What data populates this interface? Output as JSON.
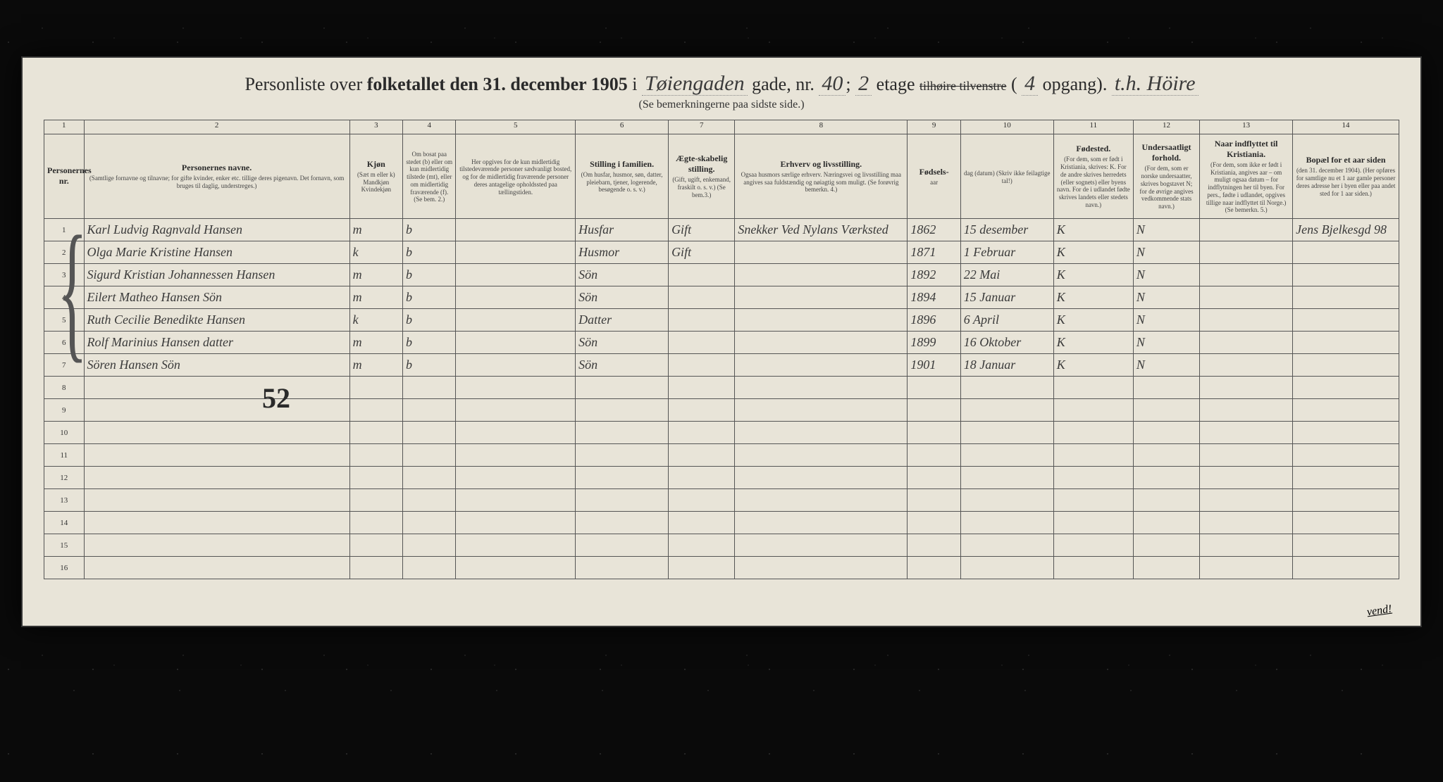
{
  "document": {
    "title_prefix": "Personliste over ",
    "title_bold": "folketallet den 31. december 1905",
    "title_i": " i ",
    "street_handwritten": "Tøiengaden",
    "title_gade": " gade, nr. ",
    "house_number": "40",
    "separator": "; ",
    "floor": "2",
    "title_etage": " etage ",
    "strike_word": "tilhøire\ntilvenstre",
    "opgang_num": "4",
    "title_opgang": " opgang). ",
    "side": "t.h. Höire",
    "subtitle": "(Se bemerkningerne paa sidste side.)",
    "big_number": "52",
    "vend": "vend!"
  },
  "columns": {
    "nums": [
      "1",
      "2",
      "3",
      "4",
      "5",
      "6",
      "7",
      "8",
      "9",
      "10",
      "11",
      "12",
      "13",
      "14"
    ],
    "headers": [
      {
        "title": "Personernes nr.",
        "sub": ""
      },
      {
        "title": "Personernes navne.",
        "sub": "(Samtlige fornavne og tilnavne; for gifte kvinder, enker etc. tillige deres pigenavn. Det fornavn, som bruges til daglig, understreges.)"
      },
      {
        "title": "Kjøn",
        "sub": "(Sæt m eller k)\nMandkjøn\nKvindekjøn"
      },
      {
        "title": "",
        "sub": "Om bosat paa stedet (b) eller om kun midlertidig tilstede (mt), eller om midlertidig fraværende (f). (Se bem. 2.)"
      },
      {
        "title": "",
        "sub": "Her opgives for de kun midlertidig tilstedeværende personer sædvanligt bosted, og for de midlertidig fraværende personer deres antagelige opholdssted paa tællingstiden."
      },
      {
        "title": "Stilling i familien.",
        "sub": "(Om husfar, husmor, søn, datter, pleiebarn, tjener, logerende, besøgende o. s. v.)"
      },
      {
        "title": "Ægte-skabelig stilling.",
        "sub": "(Gift, ugift, enkemand, fraskilt o. s. v.) (Se bem.3.)"
      },
      {
        "title": "Erhverv og livsstilling.",
        "sub": "Ogsaa husmors særlige erhverv. Næringsvei og livsstilling maa angives saa fuldstændig og nøiagtig som muligt. (Se forøvrig bemerkn. 4.)"
      },
      {
        "title": "Fødsels-",
        "sub": "aar"
      },
      {
        "title": "",
        "sub": "dag (datum)\n(Skriv ikke feilagtige tal!)"
      },
      {
        "title": "Fødested.",
        "sub": "(For dem, som er født i Kristiania, skrives: K. For de andre skrives herredets (eller sognets) eller byens navn. For de i udlandet fødte skrives landets eller stedets navn.)"
      },
      {
        "title": "Undersaatligt forhold.",
        "sub": "(For dem, som er norske undersaatter, skrives bogstavet N; for de øvrige angives vedkommende stats navn.)"
      },
      {
        "title": "Naar indflyttet til Kristiania.",
        "sub": "(For dem, som ikke er født i Kristiania, angives aar – om muligt ogsaa datum – for indflytningen her til byen. For pers., fødte i udlandet, opgives tillige naar indflyttet til Norge.) (Se bemerkn. 5.)"
      },
      {
        "title": "Bopæl for et aar siden",
        "sub": "(den 31. december 1904). (Her opføres for samtlige nu et 1 aar gamle personer deres adresse her i byen eller paa andet sted for 1 aar siden.)"
      }
    ],
    "widths_pct": [
      3,
      20,
      4,
      4,
      9,
      7,
      5,
      13,
      4,
      7,
      6,
      5,
      7,
      8
    ]
  },
  "rows": [
    {
      "n": "1",
      "name": "Karl Ludvig Ragnvald Hansen",
      "sex": "m",
      "res": "b",
      "away": "",
      "fam": "Husfar",
      "mar": "Gift",
      "occ": "Snekker\nVed Nylans Værksted",
      "year": "1862",
      "date": "15 desember",
      "birthpl": "K",
      "nat": "N",
      "moved": "",
      "prev": "Jens Bjelkesgd 98"
    },
    {
      "n": "2",
      "name": "Olga Marie Kristine Hansen",
      "sex": "k",
      "res": "b",
      "away": "",
      "fam": "Husmor",
      "mar": "Gift",
      "occ": "",
      "year": "1871",
      "date": "1 Februar",
      "birthpl": "K",
      "nat": "N",
      "moved": "",
      "prev": ""
    },
    {
      "n": "3",
      "name": "Sigurd Kristian Johannessen Hansen",
      "sex": "m",
      "res": "b",
      "away": "",
      "fam": "Sön",
      "mar": "",
      "occ": "",
      "year": "1892",
      "date": "22 Mai",
      "birthpl": "K",
      "nat": "N",
      "moved": "",
      "prev": ""
    },
    {
      "n": "4",
      "name": "Eilert Matheo Hansen  Sön",
      "sex": "m",
      "res": "b",
      "away": "",
      "fam": "Sön",
      "mar": "",
      "occ": "",
      "year": "1894",
      "date": "15 Januar",
      "birthpl": "K",
      "nat": "N",
      "moved": "",
      "prev": ""
    },
    {
      "n": "5",
      "name": "Ruth Cecilie Benedikte Hansen",
      "sex": "k",
      "res": "b",
      "away": "",
      "fam": "Datter",
      "mar": "",
      "occ": "",
      "year": "1896",
      "date": "6 April",
      "birthpl": "K",
      "nat": "N",
      "moved": "",
      "prev": ""
    },
    {
      "n": "6",
      "name": "Rolf Marinius Hansen  datter",
      "sex": "m",
      "res": "b",
      "away": "",
      "fam": "Sön",
      "mar": "",
      "occ": "",
      "year": "1899",
      "date": "16 Oktober",
      "birthpl": "K",
      "nat": "N",
      "moved": "",
      "prev": ""
    },
    {
      "n": "7",
      "name": "Sören Hansen  Sön",
      "sex": "m",
      "res": "b",
      "away": "",
      "fam": "Sön",
      "mar": "",
      "occ": "",
      "year": "1901",
      "date": "18 Januar",
      "birthpl": "K",
      "nat": "N",
      "moved": "",
      "prev": ""
    },
    {
      "n": "8"
    },
    {
      "n": "9"
    },
    {
      "n": "10"
    },
    {
      "n": "11"
    },
    {
      "n": "12"
    },
    {
      "n": "13"
    },
    {
      "n": "14"
    },
    {
      "n": "15"
    },
    {
      "n": "16"
    }
  ],
  "style": {
    "paper_bg": "#e8e4d8",
    "ink": "#2a2a2a",
    "hand_ink": "#3a3a3a",
    "border": "#555555",
    "title_fontsize": 26,
    "header_fontsize": 11,
    "body_hand_fontsize": 18
  }
}
